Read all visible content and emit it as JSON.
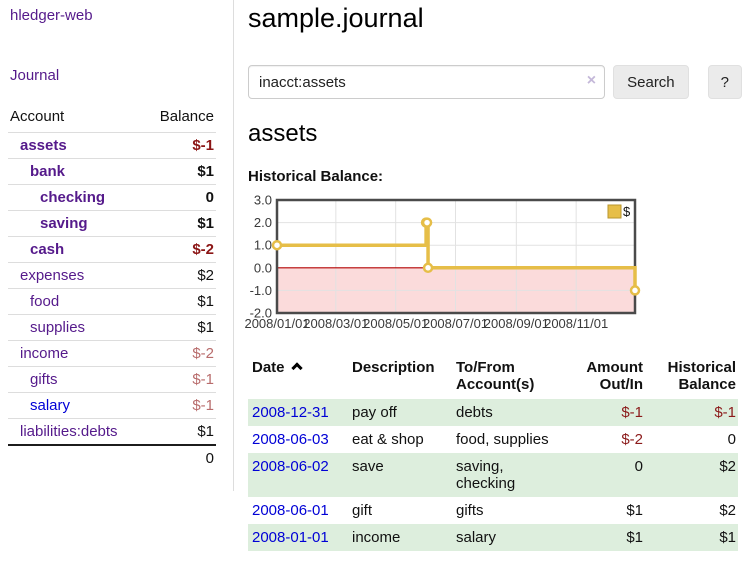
{
  "sidebar": {
    "app_title": "hledger-web",
    "journal_link": "Journal",
    "accounts_table": {
      "headers": [
        "Account",
        "Balance"
      ],
      "rows": [
        {
          "name": "assets",
          "balance": "$-1"
        },
        {
          "name": "bank",
          "balance": "$1"
        },
        {
          "name": "checking",
          "balance": "0"
        },
        {
          "name": "saving",
          "balance": "$1"
        },
        {
          "name": "cash",
          "balance": "$-2"
        },
        {
          "name": "expenses",
          "balance": "$2"
        },
        {
          "name": "food",
          "balance": "$1"
        },
        {
          "name": "supplies",
          "balance": "$1"
        },
        {
          "name": "income",
          "balance": "$-2"
        },
        {
          "name": "gifts",
          "balance": "$-1"
        },
        {
          "name": "salary",
          "balance": "$-1"
        },
        {
          "name": "liabilities:debts",
          "balance": "$1"
        }
      ],
      "total": "0"
    }
  },
  "main": {
    "title": "sample.journal",
    "search": {
      "value": "inacct:assets",
      "clear_icon": "×",
      "button_label": "Search",
      "help_label": "?"
    },
    "account_heading": "assets",
    "chart_label": "Historical Balance:",
    "register": {
      "headers": {
        "date": "Date",
        "sort_direction": "ascending",
        "description": "Description",
        "accounts": "To/From Account(s)",
        "amount": "Amount Out/In",
        "balance": "Historical Balance"
      },
      "rows": [
        {
          "date": "2008-12-31",
          "description": "pay off",
          "accounts": "debts",
          "amount": "$-1",
          "balance": "$-1"
        },
        {
          "date": "2008-06-03",
          "description": "eat & shop",
          "accounts": "food, supplies",
          "amount": "$-2",
          "balance": "0"
        },
        {
          "date": "2008-06-02",
          "description": "save",
          "accounts": "saving, checking",
          "amount": "0",
          "balance": "$2"
        },
        {
          "date": "2008-06-01",
          "description": "gift",
          "accounts": "gifts",
          "amount": "$1",
          "balance": "$2"
        },
        {
          "date": "2008-01-01",
          "description": "income",
          "accounts": "salary",
          "amount": "$1",
          "balance": "$1"
        }
      ]
    }
  },
  "chart_data": {
    "type": "line",
    "step": true,
    "title": "Historical Balance:",
    "series": [
      {
        "name": "$",
        "points": [
          [
            "2008-01-01",
            1
          ],
          [
            "2008-06-01",
            2
          ],
          [
            "2008-06-02",
            2
          ],
          [
            "2008-06-03",
            0
          ],
          [
            "2008-12-31",
            -1
          ]
        ],
        "color": "#e6be48",
        "marker_fill": "#ffffff"
      }
    ],
    "xlim": [
      "2008-01-01",
      "2008-12-31"
    ],
    "ylim": [
      -2,
      3
    ],
    "x_ticks": [
      "2008/01/01",
      "2008/03/01",
      "2008/05/01",
      "2008/07/01",
      "2008/09/01",
      "2008/11/01"
    ],
    "y_ticks": [
      "3.0",
      "2.0",
      "1.0",
      "0.0",
      "-1.0",
      "-2.0"
    ],
    "grid": true,
    "grid_color": "#e2e2e2",
    "border_color": "#4a4a4a",
    "negative_region_color": "#fbdbdb",
    "zero_line_color": "#b30000",
    "legend": {
      "label": "$",
      "position": "top-right"
    }
  },
  "icons": {
    "sort": "chevron-up-icon",
    "clear_search": "x-clear-icon"
  },
  "colors": {
    "link_purple": "#551a8b",
    "link_blue": "#0000d6",
    "negative_strong": "#8b1515",
    "negative_soft": "#b86c6c",
    "row_green": "#ddeedd",
    "chart_gold": "#e6be48",
    "chart_pink": "#fbdbdb",
    "zero_line": "#b30000"
  }
}
